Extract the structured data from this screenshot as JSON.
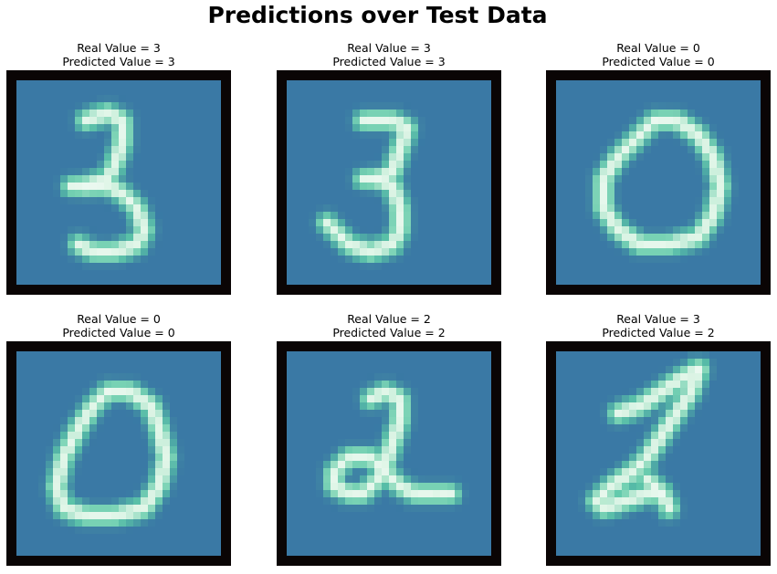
{
  "figure": {
    "title": "Predictions over Test Data",
    "colors": {
      "background": "#3a79a5",
      "border": "#0a0505",
      "stroke_bright": "#e8f8ee",
      "stroke_mid": "#5cc8a8"
    },
    "panels": [
      {
        "real_label": "Real Value = 3",
        "predicted_label": "Predicted Value = 3",
        "digit_image": "handwritten-digit-3"
      },
      {
        "real_label": "Real Value = 3",
        "predicted_label": "Predicted Value = 3",
        "digit_image": "handwritten-digit-3"
      },
      {
        "real_label": "Real Value = 0",
        "predicted_label": "Predicted Value = 0",
        "digit_image": "handwritten-digit-0"
      },
      {
        "real_label": "Real Value = 0",
        "predicted_label": "Predicted Value = 0",
        "digit_image": "handwritten-digit-0"
      },
      {
        "real_label": "Real Value = 2",
        "predicted_label": "Predicted Value = 2",
        "digit_image": "handwritten-digit-2"
      },
      {
        "real_label": "Real Value = 3",
        "predicted_label": "Predicted Value = 2",
        "digit_image": "handwritten-digit-2"
      }
    ]
  }
}
